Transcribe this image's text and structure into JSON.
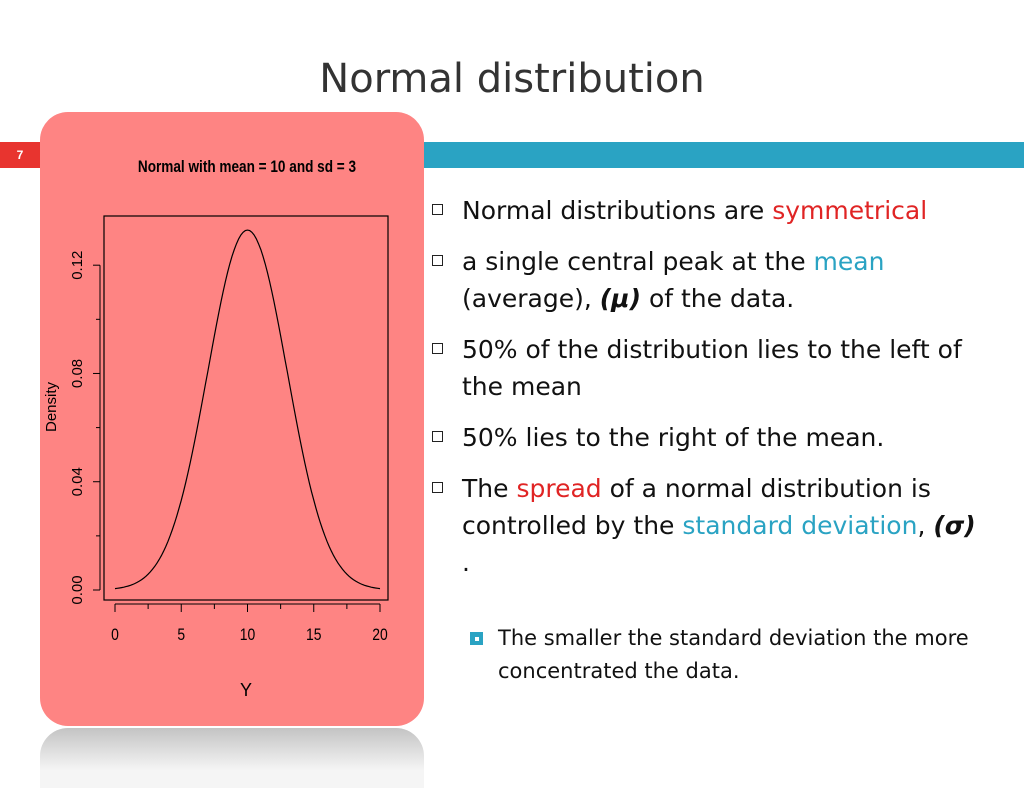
{
  "slide": {
    "title": "Normal distribution",
    "number": "7"
  },
  "colors": {
    "accent_red": "#e8342f",
    "accent_blue": "#2aa3c3",
    "chart_background": "#fe8483",
    "emphasis_red": "#e02424"
  },
  "chart_data": {
    "type": "line",
    "title": "Normal with mean = 10 and sd = 3",
    "xlabel": "Y",
    "ylabel": "Density",
    "xlim": [
      0,
      20
    ],
    "ylim": [
      0,
      0.133
    ],
    "xticks": [
      "0",
      "5",
      "10",
      "15",
      "20"
    ],
    "yticks": [
      "0.00",
      "0.04",
      "0.08",
      "0.12"
    ],
    "mean": 10,
    "sd": 3,
    "series": [
      {
        "x": [
          0,
          1,
          2,
          3,
          4,
          5,
          6,
          7,
          8,
          9,
          10,
          11,
          12,
          13,
          14,
          15,
          16,
          17,
          18,
          19,
          20
        ],
        "values": [
          0.0005,
          0.0015,
          0.0038,
          0.0087,
          0.018,
          0.0332,
          0.0547,
          0.0807,
          0.1065,
          0.1258,
          0.133,
          0.1258,
          0.1065,
          0.0807,
          0.0547,
          0.0332,
          0.018,
          0.0087,
          0.0038,
          0.0015,
          0.0005
        ]
      }
    ],
    "grid": false
  },
  "bullets": [
    {
      "parts": [
        {
          "text": "Normal distributions are ",
          "style": ""
        },
        {
          "text": "symmetrical",
          "style": "red"
        }
      ]
    },
    {
      "parts": [
        {
          "text": " a single central peak at the ",
          "style": ""
        },
        {
          "text": "mean",
          "style": "teal"
        },
        {
          "text": " (average), ",
          "style": ""
        },
        {
          "text": "(μ)",
          "style": "bi"
        },
        {
          "text": " of the data.",
          "style": ""
        }
      ]
    },
    {
      "parts": [
        {
          "text": "  50% of the distribution lies to the left of the mean",
          "style": ""
        }
      ]
    },
    {
      "parts": [
        {
          "text": "50% lies to the right of the mean.",
          "style": ""
        }
      ]
    },
    {
      "parts": [
        {
          "text": "The ",
          "style": ""
        },
        {
          "text": "spread",
          "style": "red"
        },
        {
          "text": " of a normal distribution is controlled by the ",
          "style": ""
        },
        {
          "text": "standard deviation",
          "style": "teal"
        },
        {
          "text": ", ",
          "style": ""
        },
        {
          "text": "(σ)",
          "style": "bi"
        },
        {
          "text": " .",
          "style": ""
        }
      ]
    }
  ],
  "sub_bullets": [
    {
      "text": "The smaller the standard deviation the more concentrated the data."
    }
  ]
}
